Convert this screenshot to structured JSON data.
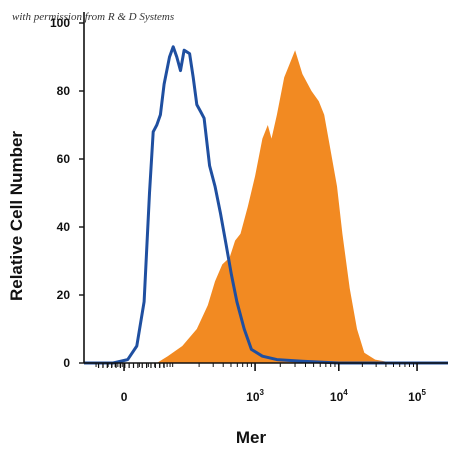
{
  "watermark": "with permission from R & D Systems",
  "chart_data": {
    "type": "area",
    "title": "",
    "xlabel": "Mer",
    "ylabel": "Relative Cell Number",
    "x_scale": "biexponential",
    "y_ticks": [
      0,
      20,
      40,
      60,
      80,
      100
    ],
    "x_ticks": [
      {
        "base": "0",
        "exp": ""
      },
      {
        "base": "10",
        "exp": "3"
      },
      {
        "base": "10",
        "exp": "4"
      },
      {
        "base": "10",
        "exp": "5"
      }
    ],
    "ylim": [
      0,
      100
    ],
    "grid": false,
    "legend": "none",
    "series": [
      {
        "style": "outline",
        "color": "#1f4fa0",
        "points": [
          [
            0.0,
            0
          ],
          [
            0.08,
            0
          ],
          [
            0.12,
            1
          ],
          [
            0.145,
            5
          ],
          [
            0.165,
            18
          ],
          [
            0.18,
            50
          ],
          [
            0.19,
            68
          ],
          [
            0.2,
            70
          ],
          [
            0.21,
            73
          ],
          [
            0.22,
            82
          ],
          [
            0.235,
            90
          ],
          [
            0.245,
            93
          ],
          [
            0.255,
            90
          ],
          [
            0.265,
            86
          ],
          [
            0.275,
            92
          ],
          [
            0.29,
            91
          ],
          [
            0.3,
            84
          ],
          [
            0.31,
            76
          ],
          [
            0.32,
            74
          ],
          [
            0.33,
            72
          ],
          [
            0.345,
            58
          ],
          [
            0.36,
            52
          ],
          [
            0.375,
            44
          ],
          [
            0.39,
            35
          ],
          [
            0.405,
            26
          ],
          [
            0.42,
            18
          ],
          [
            0.44,
            10
          ],
          [
            0.46,
            4
          ],
          [
            0.49,
            2
          ],
          [
            0.53,
            1
          ],
          [
            0.6,
            0.5
          ],
          [
            0.7,
            0
          ],
          [
            1.0,
            0
          ]
        ]
      },
      {
        "style": "filled",
        "color": "#f28a22",
        "points": [
          [
            0.0,
            0
          ],
          [
            0.2,
            0
          ],
          [
            0.23,
            2
          ],
          [
            0.27,
            5
          ],
          [
            0.31,
            10
          ],
          [
            0.34,
            17
          ],
          [
            0.36,
            24
          ],
          [
            0.38,
            29
          ],
          [
            0.4,
            31
          ],
          [
            0.415,
            36
          ],
          [
            0.43,
            38
          ],
          [
            0.45,
            46
          ],
          [
            0.47,
            55
          ],
          [
            0.49,
            66
          ],
          [
            0.505,
            70
          ],
          [
            0.515,
            66
          ],
          [
            0.53,
            73
          ],
          [
            0.55,
            84
          ],
          [
            0.565,
            88
          ],
          [
            0.58,
            92
          ],
          [
            0.6,
            85
          ],
          [
            0.625,
            80
          ],
          [
            0.645,
            77
          ],
          [
            0.66,
            73
          ],
          [
            0.675,
            64
          ],
          [
            0.695,
            52
          ],
          [
            0.71,
            38
          ],
          [
            0.73,
            22
          ],
          [
            0.75,
            10
          ],
          [
            0.77,
            3
          ],
          [
            0.8,
            1
          ],
          [
            0.85,
            0
          ],
          [
            1.0,
            0
          ]
        ]
      }
    ]
  }
}
